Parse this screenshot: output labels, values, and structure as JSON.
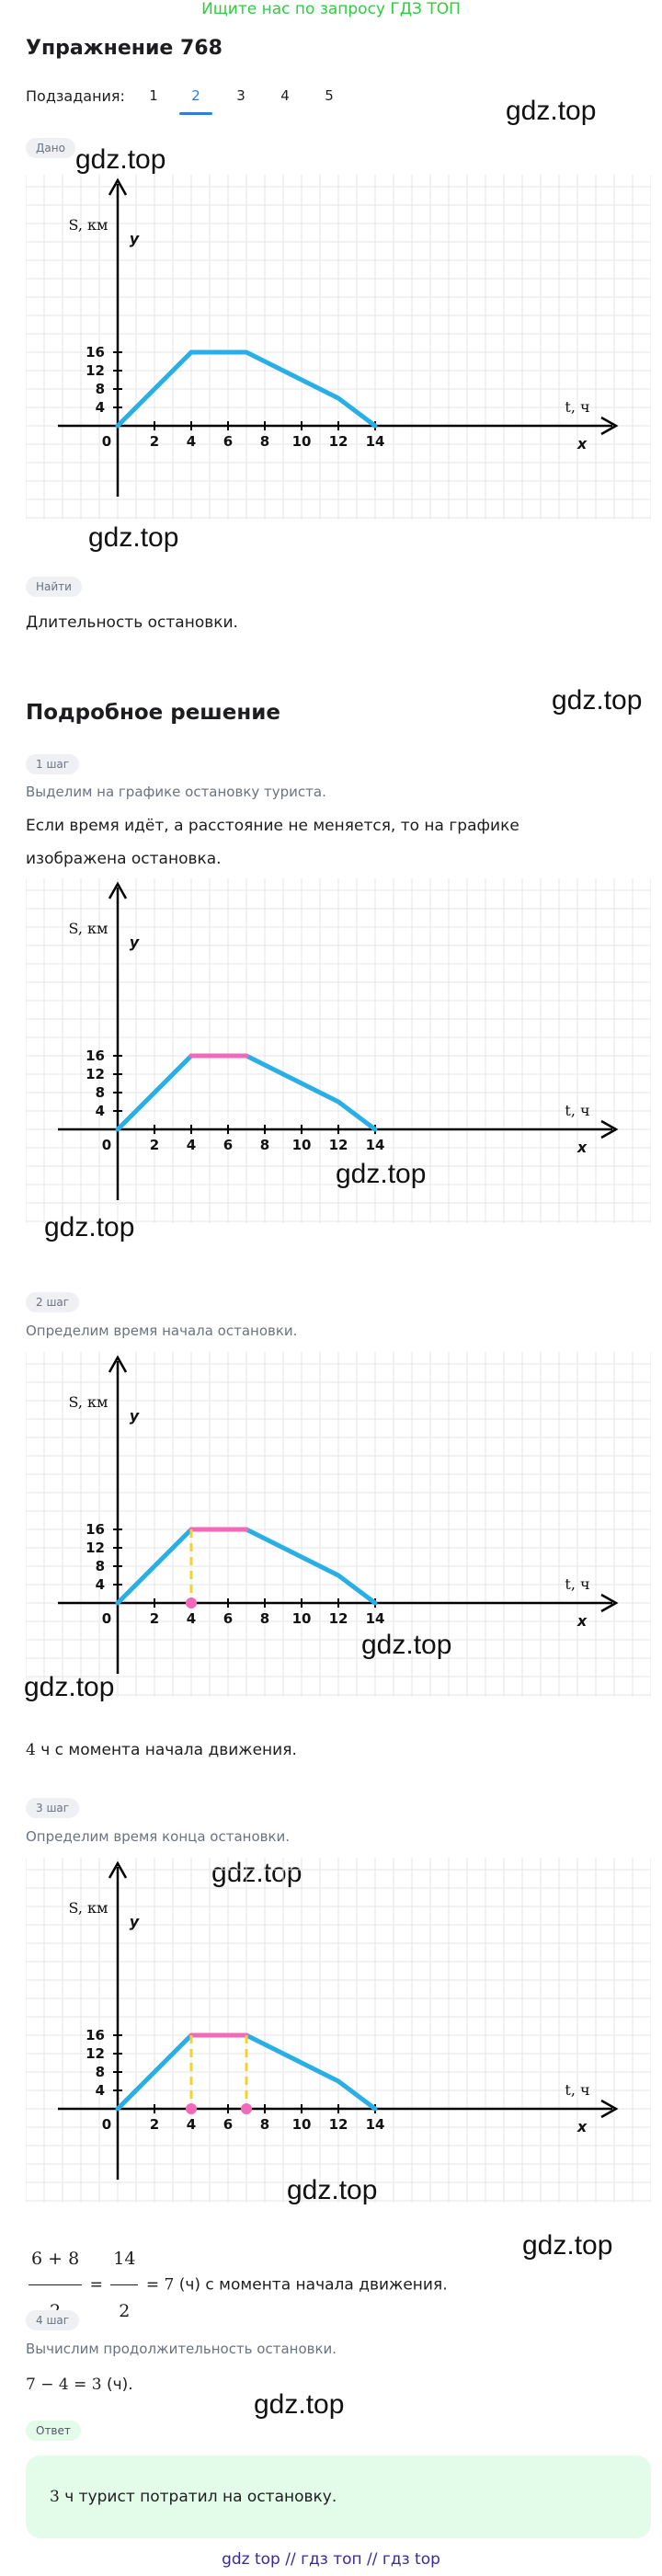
{
  "banner": "Ищите нас по запросу ГДЗ ТОП",
  "title": "Упражнение 768",
  "subtasks": {
    "label": "Подзадания:",
    "items": [
      "1",
      "2",
      "3",
      "4",
      "5"
    ],
    "active_index": 1
  },
  "watermark": "gdz.top",
  "given": {
    "tag": "Дано",
    "find_tag": "Найти",
    "find_text": "Длительность остановки."
  },
  "solution": {
    "heading": "Подробное решение",
    "step1": {
      "tag": "1 шаг",
      "subtitle": "Выделим на графике остановку туриста.",
      "text": "Если время идёт, а расстояние не меняется, то на графике изображена остановка."
    },
    "step2": {
      "tag": "2 шаг",
      "subtitle": "Определим время начала остановки.",
      "result_num": "4",
      "result_text": " ч с момента начала движения."
    },
    "step3": {
      "tag": "3 шаг",
      "subtitle": "Определим время конца остановки.",
      "frac1_num": "6 + 8",
      "frac1_den": "2",
      "eq": "=",
      "frac2_num": "14",
      "frac2_den": "2",
      "value": "= 7",
      "unit": " (ч)",
      "result_text": " с момента начала движения."
    },
    "step4": {
      "tag": "4 шаг",
      "subtitle": "Вычислим продолжительность остановки.",
      "expr": "7 − 4 = 3",
      "unit": " (ч)."
    },
    "answer": {
      "tag": "Ответ",
      "num": "3",
      "text": " ч турист потратил на остановку."
    }
  },
  "chart_data": {
    "type": "line",
    "ylabel": "S, км",
    "y_axis_letter": "y",
    "xlabel": "t, ч",
    "x_axis_letter": "x",
    "origin_label": "0",
    "x_ticks": [
      "2",
      "4",
      "6",
      "8",
      "10",
      "12",
      "14"
    ],
    "y_ticks": [
      "4",
      "8",
      "12",
      "16"
    ],
    "xlim": [
      -6,
      22
    ],
    "ylim": [
      -8,
      25
    ],
    "grid": true,
    "series": [
      {
        "x": [
          0,
          4,
          7,
          12,
          14
        ],
        "values": [
          0,
          16,
          16,
          6,
          0
        ]
      }
    ],
    "stop_segment": {
      "x": [
        4,
        7
      ],
      "y": 16
    },
    "colors": {
      "line": "#29aee6",
      "highlight": "#f06ab8",
      "guide": "#f5d02e",
      "grid": "#e6e6e6",
      "axis": "#000000"
    }
  },
  "footer": "gdz top  //  гдз топ  //  гдз top"
}
